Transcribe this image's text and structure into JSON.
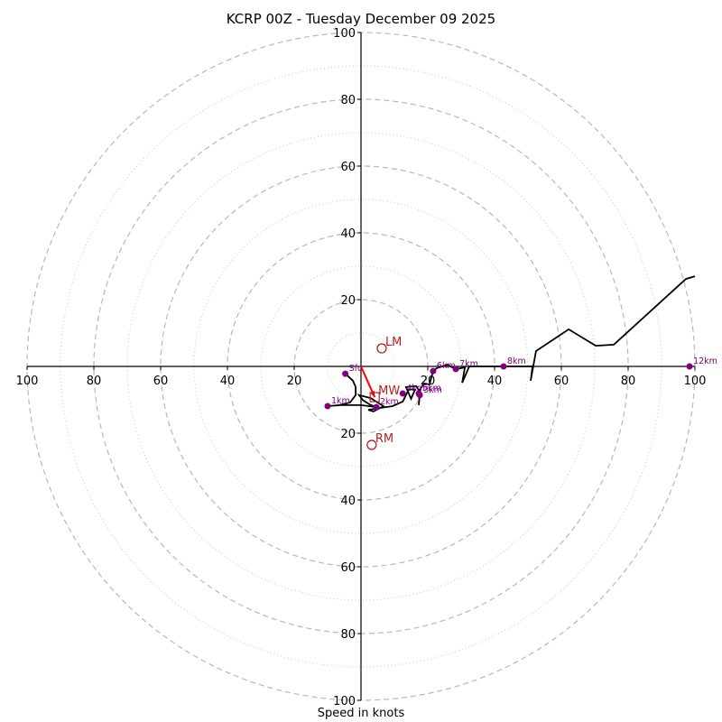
{
  "chart_data": {
    "type": "line",
    "subtype": "hodograph",
    "title": "KCRP 00Z - Tuesday December 09 2025",
    "xlabel": "Speed in knots",
    "ylabel": "",
    "xlim": [
      -100,
      100
    ],
    "ylim": [
      -100,
      100
    ],
    "grid": true,
    "rings_dashed": [
      20,
      40,
      60,
      80,
      100
    ],
    "rings_dotted": [
      10,
      30,
      50,
      70,
      90
    ],
    "x_ticks": [
      -100,
      -80,
      -60,
      -40,
      -20,
      20,
      40,
      60,
      80,
      100
    ],
    "y_ticks": [
      -100,
      -80,
      -60,
      -40,
      -20,
      20,
      40,
      60,
      80,
      100
    ],
    "tick_label_format": "abs",
    "hodograph": {
      "color": "#000000",
      "points": [
        [
          -4.7,
          -2.2
        ],
        [
          -2.4,
          -4.3
        ],
        [
          -1.6,
          -6.2
        ],
        [
          -1.6,
          -8.6
        ],
        [
          -3.3,
          -10.8
        ],
        [
          -6.5,
          -11.6
        ],
        [
          -10,
          -11.9
        ],
        [
          -6,
          -11.6
        ],
        [
          0,
          -11.6
        ],
        [
          4.6,
          -12.2
        ],
        [
          2.6,
          -11.4
        ],
        [
          0.6,
          -10.1
        ],
        [
          -0.6,
          -8.6
        ],
        [
          2.9,
          -9.5
        ],
        [
          6.7,
          -11.9
        ],
        [
          3.7,
          -13.5
        ],
        [
          2.2,
          -13.0
        ],
        [
          6,
          -12.4
        ],
        [
          9.5,
          -11.9
        ],
        [
          12.5,
          -10.5
        ],
        [
          14.3,
          -6.9
        ],
        [
          16.2,
          -6.9
        ],
        [
          15,
          -9.7
        ],
        [
          13.5,
          -6.2
        ],
        [
          16.5,
          -5.9
        ],
        [
          17.6,
          -7.6
        ],
        [
          17.3,
          -11.6
        ],
        [
          17.6,
          -8.6
        ],
        [
          17.6,
          -7.0
        ],
        [
          18.9,
          -5.1
        ],
        [
          20.5,
          -5.4
        ],
        [
          21.6,
          -1.4
        ],
        [
          22.7,
          -0.5
        ],
        [
          25.9,
          0.5
        ],
        [
          28.4,
          -0.8
        ],
        [
          31.1,
          -0.3
        ],
        [
          30.3,
          -4.9
        ],
        [
          32.4,
          0
        ],
        [
          42.7,
          0
        ],
        [
          51.9,
          0
        ],
        [
          51.4,
          0
        ],
        [
          51.4,
          0.3
        ],
        [
          50.8,
          -4.3
        ],
        [
          52.4,
          4.6
        ],
        [
          62.2,
          11.1
        ],
        [
          70.3,
          6.2
        ],
        [
          75.7,
          6.5
        ],
        [
          97.3,
          26.2
        ],
        [
          100,
          27
        ]
      ],
      "height_markers": [
        {
          "label": "Sfc",
          "u": -4.7,
          "v": -2.2
        },
        {
          "label": "1km",
          "u": -10,
          "v": -11.9
        },
        {
          "label": "2km",
          "u": 4.6,
          "v": -12.2
        },
        {
          "label": "3km",
          "u": 17.6,
          "v": -8.6
        },
        {
          "label": "4km",
          "u": 12.5,
          "v": -8.1
        },
        {
          "label": "5km",
          "u": 17.3,
          "v": -8.1
        },
        {
          "label": "6km",
          "u": 21.6,
          "v": -1.4
        },
        {
          "label": "7km",
          "u": 28.4,
          "v": -0.8
        },
        {
          "label": "8km",
          "u": 42.7,
          "v": 0
        },
        {
          "label": "12km",
          "u": 98.4,
          "v": 0
        }
      ],
      "marker_color": "#800080"
    },
    "storm_motion": [
      {
        "label": "LM",
        "u": 6.2,
        "v": 5.4
      },
      {
        "label": "RM",
        "u": 3.2,
        "v": -23.5
      },
      {
        "label": "MW",
        "u": 4.1,
        "v": -9.2
      }
    ],
    "storm_motion_color": "#b22222",
    "shear_vector": {
      "from": [
        0,
        0
      ],
      "to": [
        4.1,
        -9.2
      ],
      "color": "#ff0000"
    }
  }
}
